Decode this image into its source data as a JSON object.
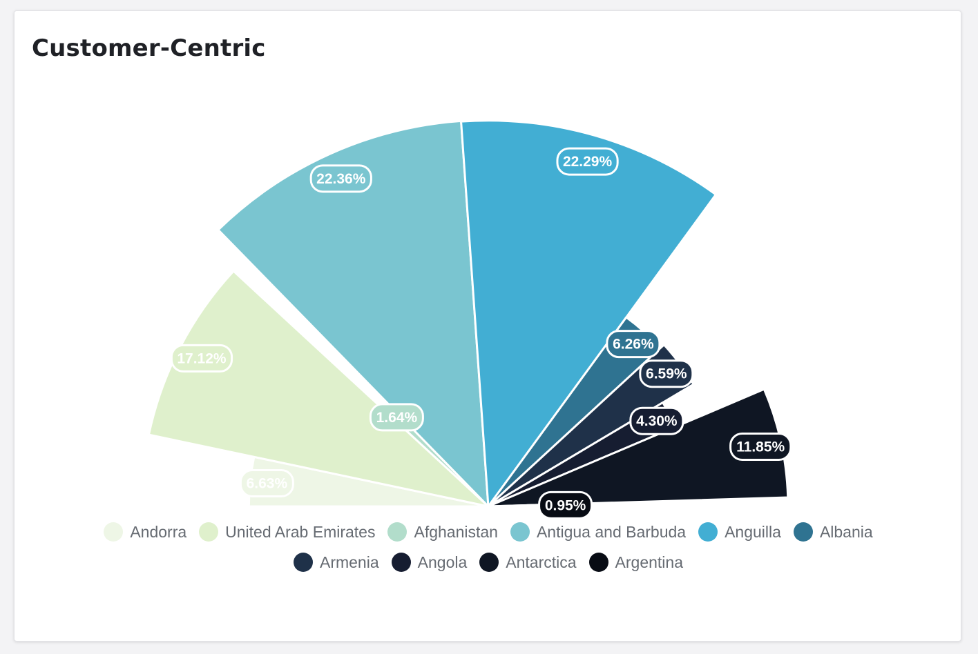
{
  "title": "Customer-Centric",
  "chart_data": {
    "type": "pie",
    "layout": "half-donut-rose",
    "categories": [
      "Andorra",
      "United Arab Emirates",
      "Afghanistan",
      "Antigua and Barbuda",
      "Anguilla",
      "Albania",
      "Armenia",
      "Angola",
      "Antarctica",
      "Argentina"
    ],
    "values": [
      6.63,
      17.12,
      1.64,
      22.36,
      22.29,
      6.26,
      6.59,
      4.3,
      11.85,
      0.95
    ],
    "labels": [
      "6.63%",
      "17.12%",
      "1.64%",
      "22.36%",
      "22.29%",
      "6.26%",
      "6.59%",
      "4.30%",
      "11.85%",
      "0.95%"
    ],
    "colors": [
      "#eef6e6",
      "#dff0cc",
      "#b2ddcb",
      "#7ac5d0",
      "#42aed3",
      "#2f7391",
      "#1f3149",
      "#161d31",
      "#0f1623",
      "#080c14"
    ],
    "legend_position": "bottom"
  }
}
